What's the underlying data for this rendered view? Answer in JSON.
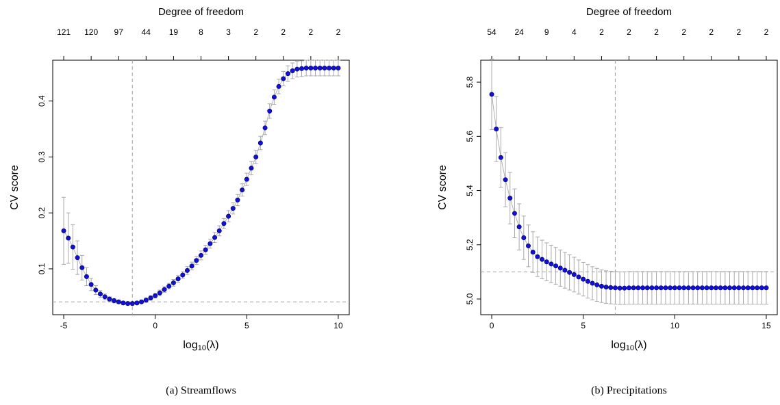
{
  "chart_data": [
    {
      "type": "errorbar-scatter",
      "caption": "(a) Streamflows",
      "top_axis_title": "Degree of freedom",
      "ylabel": "CV score",
      "xlabel": {
        "base": "log",
        "sub": "10",
        "arg": "(λ)"
      },
      "color": "#1010d8",
      "line_color": "#b0b0b0",
      "error_color": "#a8a8a8",
      "ref_color": "#a0a0a0",
      "xlim": [
        -5.6,
        10.6
      ],
      "ylim": [
        0.018,
        0.473
      ],
      "xticks": [
        -5,
        0,
        5,
        10
      ],
      "yticks": [
        0.1,
        0.2,
        0.3,
        0.4
      ],
      "top_ticks": [
        {
          "value": -5,
          "label": "121"
        },
        {
          "value": -3.5,
          "label": "120"
        },
        {
          "value": -2,
          "label": "97"
        },
        {
          "value": -0.5,
          "label": "44"
        },
        {
          "value": 1,
          "label": "19"
        },
        {
          "value": 2.5,
          "label": "8"
        },
        {
          "value": 4,
          "label": "3"
        },
        {
          "value": 5.5,
          "label": "2"
        },
        {
          "value": 7,
          "label": "2"
        },
        {
          "value": 8.5,
          "label": "2"
        },
        {
          "value": 10,
          "label": "2"
        }
      ],
      "vline": -1.25,
      "hline": 0.041,
      "x": [
        -5,
        -4.75,
        -4.5,
        -4.25,
        -4,
        -3.75,
        -3.5,
        -3.25,
        -3,
        -2.75,
        -2.5,
        -2.25,
        -2,
        -1.75,
        -1.5,
        -1.25,
        -1,
        -0.75,
        -0.5,
        -0.25,
        0,
        0.25,
        0.5,
        0.75,
        1,
        1.25,
        1.5,
        1.75,
        2,
        2.25,
        2.5,
        2.75,
        3,
        3.25,
        3.5,
        3.75,
        4,
        4.25,
        4.5,
        4.75,
        5,
        5.25,
        5.5,
        5.75,
        6,
        6.25,
        6.5,
        6.75,
        7,
        7.25,
        7.5,
        7.75,
        8,
        8.25,
        8.5,
        8.75,
        9,
        9.25,
        9.5,
        9.75,
        10
      ],
      "values": [
        0.168,
        0.155,
        0.139,
        0.12,
        0.102,
        0.086,
        0.072,
        0.062,
        0.055,
        0.05,
        0.046,
        0.043,
        0.041,
        0.039,
        0.038,
        0.038,
        0.039,
        0.041,
        0.044,
        0.048,
        0.052,
        0.057,
        0.063,
        0.069,
        0.075,
        0.082,
        0.089,
        0.097,
        0.105,
        0.115,
        0.124,
        0.134,
        0.145,
        0.156,
        0.168,
        0.181,
        0.194,
        0.208,
        0.223,
        0.241,
        0.26,
        0.28,
        0.3,
        0.325,
        0.352,
        0.382,
        0.407,
        0.426,
        0.44,
        0.449,
        0.454,
        0.457,
        0.458,
        0.459,
        0.459,
        0.459,
        0.459,
        0.459,
        0.459,
        0.459,
        0.459
      ],
      "errors": [
        0.06,
        0.045,
        0.04,
        0.03,
        0.022,
        0.016,
        0.011,
        0.008,
        0.006,
        0.005,
        0.004,
        0.004,
        0.003,
        0.003,
        0.003,
        0.003,
        0.003,
        0.003,
        0.004,
        0.004,
        0.004,
        0.005,
        0.005,
        0.005,
        0.006,
        0.006,
        0.006,
        0.007,
        0.007,
        0.007,
        0.008,
        0.008,
        0.008,
        0.009,
        0.009,
        0.009,
        0.01,
        0.01,
        0.01,
        0.011,
        0.011,
        0.012,
        0.012,
        0.012,
        0.012,
        0.013,
        0.013,
        0.013,
        0.013,
        0.014,
        0.014,
        0.014,
        0.014,
        0.014,
        0.014,
        0.014,
        0.014,
        0.014,
        0.014,
        0.014,
        0.014
      ]
    },
    {
      "type": "errorbar-scatter",
      "caption": "(b) Precipitations",
      "top_axis_title": "Degree of freedom",
      "ylabel": "CV score",
      "xlabel": {
        "base": "log",
        "sub": "10",
        "arg": "(λ)"
      },
      "color": "#1010d8",
      "line_color": "#b0b0b0",
      "error_color": "#a8a8a8",
      "ref_color": "#a0a0a0",
      "xlim": [
        -0.6,
        15.6
      ],
      "ylim": [
        4.942,
        5.881
      ],
      "xticks": [
        0,
        5,
        10,
        15
      ],
      "yticks": [
        {
          "value": 5,
          "label": "5.0"
        },
        5.2,
        5.4,
        5.6,
        5.8
      ],
      "top_ticks": [
        {
          "value": 0,
          "label": "54"
        },
        {
          "value": 1.5,
          "label": "24"
        },
        {
          "value": 3,
          "label": "9"
        },
        {
          "value": 4.5,
          "label": "4"
        },
        {
          "value": 6,
          "label": "2"
        },
        {
          "value": 7.5,
          "label": "2"
        },
        {
          "value": 9,
          "label": "2"
        },
        {
          "value": 10.5,
          "label": "2"
        },
        {
          "value": 12,
          "label": "2"
        },
        {
          "value": 13.5,
          "label": "2"
        },
        {
          "value": 15,
          "label": "2"
        }
      ],
      "vline": 6.75,
      "hline": 5.1,
      "x": [
        0,
        0.25,
        0.5,
        0.75,
        1,
        1.25,
        1.5,
        1.75,
        2,
        2.25,
        2.5,
        2.75,
        3,
        3.25,
        3.5,
        3.75,
        4,
        4.25,
        4.5,
        4.75,
        5,
        5.25,
        5.5,
        5.75,
        6,
        6.25,
        6.5,
        6.75,
        7,
        7.25,
        7.5,
        7.75,
        8,
        8.25,
        8.5,
        8.75,
        9,
        9.25,
        9.5,
        9.75,
        10,
        10.25,
        10.5,
        10.75,
        11,
        11.25,
        11.5,
        11.75,
        12,
        12.25,
        12.5,
        12.75,
        13,
        13.25,
        13.5,
        13.75,
        14,
        14.25,
        14.5,
        14.75,
        15
      ],
      "values": [
        5.755,
        5.627,
        5.522,
        5.44,
        5.372,
        5.316,
        5.266,
        5.226,
        5.196,
        5.173,
        5.156,
        5.146,
        5.137,
        5.129,
        5.122,
        5.114,
        5.106,
        5.098,
        5.09,
        5.081,
        5.073,
        5.065,
        5.058,
        5.052,
        5.047,
        5.044,
        5.042,
        5.041,
        5.04,
        5.04,
        5.041,
        5.041,
        5.041,
        5.041,
        5.041,
        5.041,
        5.041,
        5.041,
        5.041,
        5.041,
        5.041,
        5.041,
        5.041,
        5.041,
        5.041,
        5.041,
        5.041,
        5.041,
        5.041,
        5.041,
        5.041,
        5.041,
        5.041,
        5.041,
        5.041,
        5.041,
        5.041,
        5.041,
        5.041,
        5.041,
        5.041
      ],
      "errors": [
        0.13,
        0.12,
        0.11,
        0.1,
        0.095,
        0.09,
        0.085,
        0.08,
        0.077,
        0.075,
        0.073,
        0.071,
        0.07,
        0.069,
        0.068,
        0.067,
        0.066,
        0.065,
        0.064,
        0.063,
        0.062,
        0.062,
        0.061,
        0.061,
        0.06,
        0.06,
        0.06,
        0.06,
        0.06,
        0.06,
        0.06,
        0.06,
        0.06,
        0.06,
        0.06,
        0.06,
        0.06,
        0.06,
        0.06,
        0.06,
        0.06,
        0.06,
        0.06,
        0.06,
        0.06,
        0.06,
        0.06,
        0.06,
        0.06,
        0.06,
        0.06,
        0.06,
        0.06,
        0.06,
        0.06,
        0.06,
        0.06,
        0.06,
        0.06,
        0.06,
        0.06
      ]
    }
  ]
}
